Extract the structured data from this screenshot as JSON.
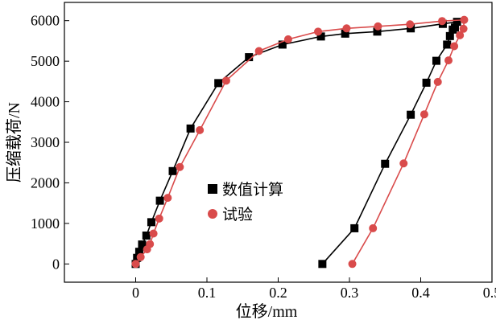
{
  "chart_data": {
    "type": "scatter",
    "xlabel": "位移/mm",
    "ylabel": "压缩载荷/N",
    "xlim": [
      -0.1,
      0.5
    ],
    "ylim": [
      -450,
      6450
    ],
    "xticks": [
      0,
      0.1,
      0.2,
      0.3,
      0.4,
      0.5
    ],
    "xtick_labels": [
      "0",
      "0.1",
      "0.2",
      "0.3",
      "0.4",
      "0.5"
    ],
    "yticks": [
      0,
      1000,
      2000,
      3000,
      4000,
      5000,
      6000
    ],
    "ytick_labels": [
      "0",
      "1000",
      "2000",
      "3000",
      "4000",
      "5000",
      "6000"
    ],
    "legend_position": "center",
    "series": [
      {
        "name": "数值计算",
        "color": "#000000",
        "marker": "square",
        "points": [
          [
            0.0,
            0
          ],
          [
            0.002,
            150
          ],
          [
            0.005,
            300
          ],
          [
            0.009,
            480
          ],
          [
            0.015,
            700
          ],
          [
            0.022,
            1030
          ],
          [
            0.034,
            1560
          ],
          [
            0.052,
            2290
          ],
          [
            0.077,
            3340
          ],
          [
            0.116,
            4460
          ],
          [
            0.159,
            5100
          ],
          [
            0.206,
            5410
          ],
          [
            0.26,
            5610
          ],
          [
            0.294,
            5680
          ],
          [
            0.339,
            5730
          ],
          [
            0.386,
            5810
          ],
          [
            0.431,
            5920
          ],
          [
            0.451,
            5970
          ],
          [
            0.448,
            5830
          ],
          [
            0.445,
            5780
          ],
          [
            0.441,
            5620
          ],
          [
            0.437,
            5410
          ],
          [
            0.422,
            5010
          ],
          [
            0.408,
            4470
          ],
          [
            0.386,
            3680
          ],
          [
            0.35,
            2470
          ],
          [
            0.307,
            880
          ],
          [
            0.262,
            0
          ]
        ]
      },
      {
        "name": "试验",
        "color": "#d94b4b",
        "marker": "circle",
        "points": [
          [
            0.0,
            0
          ],
          [
            0.007,
            170
          ],
          [
            0.016,
            360
          ],
          [
            0.02,
            490
          ],
          [
            0.025,
            750
          ],
          [
            0.033,
            1120
          ],
          [
            0.045,
            1630
          ],
          [
            0.062,
            2390
          ],
          [
            0.09,
            3300
          ],
          [
            0.127,
            4520
          ],
          [
            0.173,
            5250
          ],
          [
            0.214,
            5540
          ],
          [
            0.256,
            5730
          ],
          [
            0.296,
            5810
          ],
          [
            0.34,
            5860
          ],
          [
            0.385,
            5910
          ],
          [
            0.43,
            5990
          ],
          [
            0.461,
            6020
          ],
          [
            0.46,
            5800
          ],
          [
            0.455,
            5640
          ],
          [
            0.447,
            5370
          ],
          [
            0.439,
            5020
          ],
          [
            0.424,
            4490
          ],
          [
            0.405,
            3690
          ],
          [
            0.376,
            2480
          ],
          [
            0.333,
            880
          ],
          [
            0.304,
            0
          ]
        ]
      }
    ]
  }
}
